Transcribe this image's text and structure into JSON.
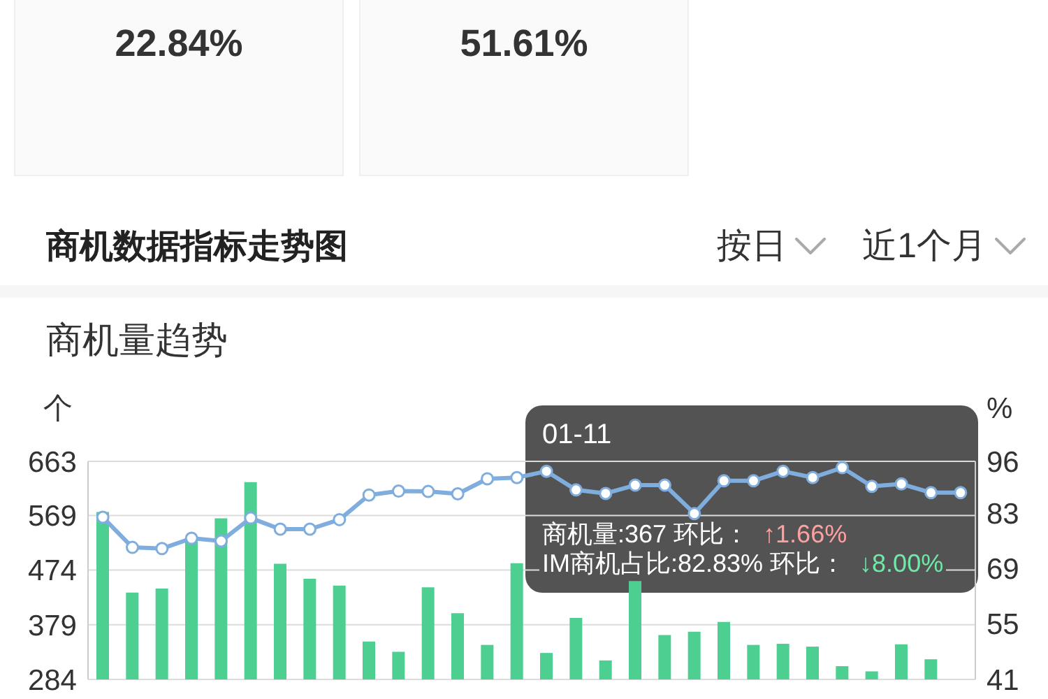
{
  "chart_data": [
    {
      "type": "other",
      "annotations": [
        "22.84%"
      ]
    },
    {
      "type": "other",
      "annotations": [
        "51.61%"
      ]
    },
    {
      "type": "bar",
      "title": "商机数据指标走势图",
      "subtitle": "商机量趋势",
      "ylabel": "个",
      "y2label": "%",
      "categories": [
        null,
        null,
        null,
        null,
        null,
        null,
        null,
        null,
        null,
        null,
        null,
        null,
        null,
        null,
        null,
        null,
        null,
        null,
        null,
        null,
        null,
        null,
        null,
        null,
        null,
        null,
        null,
        null,
        null,
        null
      ],
      "series": [
        {
          "type": "bar",
          "color": "#4ccf90",
          "values": [
            575,
            435,
            442,
            530,
            564,
            627,
            485,
            459,
            447,
            350,
            332,
            444,
            399,
            344,
            486,
            330,
            391,
            317,
            455,
            361,
            367,
            384,
            344,
            346,
            341,
            307,
            298,
            345,
            319,
            null
          ]
        },
        {
          "type": "line",
          "axis": "y2",
          "color": "#7fadde",
          "values": [
            81.9,
            74.3,
            74.0,
            76.6,
            75.9,
            81.7,
            78.9,
            78.9,
            81.3,
            87.5,
            88.5,
            88.4,
            87.8,
            91.6,
            91.9,
            93.5,
            88.8,
            87.9,
            90.0,
            90.0,
            82.83,
            91.1,
            91.1,
            93.5,
            91.9,
            94.4,
            89.7,
            90.3,
            88.1,
            88.1
          ]
        }
      ],
      "ylim": [
        284,
        663
      ],
      "yticks": [
        284,
        379,
        474,
        569,
        663
      ],
      "y2lim": [
        41,
        96
      ],
      "y2ticks": [
        41,
        55,
        69,
        83,
        96
      ],
      "grid": "y",
      "tick_labels": "y",
      "marker": "circle",
      "annotations": [
        "按日",
        "近1个月",
        "01-11",
        "商机量:367 环比：",
        "↑1.66%",
        "IM商机占比:82.83% 环比：",
        "↓8.00%"
      ]
    }
  ]
}
